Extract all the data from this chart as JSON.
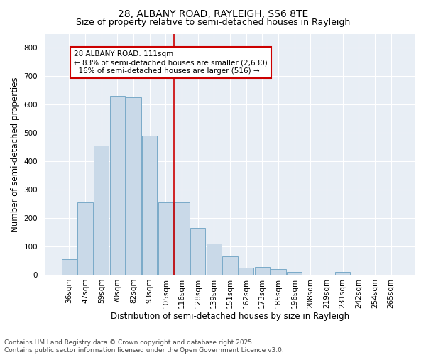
{
  "title_line1": "28, ALBANY ROAD, RAYLEIGH, SS6 8TE",
  "title_line2": "Size of property relative to semi-detached houses in Rayleigh",
  "xlabel": "Distribution of semi-detached houses by size in Rayleigh",
  "ylabel": "Number of semi-detached properties",
  "categories": [
    "36sqm",
    "47sqm",
    "59sqm",
    "70sqm",
    "82sqm",
    "93sqm",
    "105sqm",
    "116sqm",
    "128sqm",
    "139sqm",
    "151sqm",
    "162sqm",
    "173sqm",
    "185sqm",
    "196sqm",
    "208sqm",
    "219sqm",
    "231sqm",
    "242sqm",
    "254sqm",
    "265sqm"
  ],
  "values": [
    55,
    255,
    455,
    630,
    625,
    490,
    255,
    255,
    165,
    110,
    65,
    25,
    28,
    20,
    10,
    0,
    0,
    10,
    0,
    0,
    0
  ],
  "bar_color": "#c9d9e8",
  "bar_edge_color": "#7aaac8",
  "vline_x_index": 6.5,
  "vline_color": "#cc0000",
  "annotation_line1": "28 ALBANY ROAD: 111sqm",
  "annotation_line2": "← 83% of semi-detached houses are smaller (2,630)",
  "annotation_line3": "  16% of semi-detached houses are larger (516) →",
  "annotation_box_color": "#cc0000",
  "ylim": [
    0,
    850
  ],
  "yticks": [
    0,
    100,
    200,
    300,
    400,
    500,
    600,
    700,
    800
  ],
  "background_color": "#e8eef5",
  "footnote": "Contains HM Land Registry data © Crown copyright and database right 2025.\nContains public sector information licensed under the Open Government Licence v3.0.",
  "title_fontsize": 10,
  "subtitle_fontsize": 9,
  "axis_label_fontsize": 8.5,
  "tick_fontsize": 7.5,
  "annotation_fontsize": 7.5,
  "footnote_fontsize": 6.5
}
